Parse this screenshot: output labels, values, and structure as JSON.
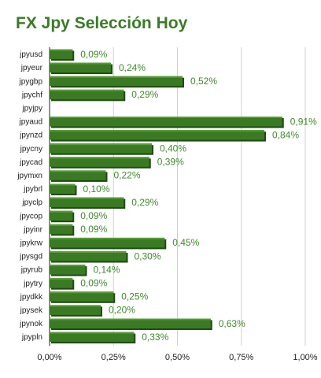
{
  "title": "FX Jpy Selección Hoy",
  "colors": {
    "title": "#3a7b27",
    "bar_fill": "#3a7a23",
    "bar_highlight": "#5a9a3a",
    "bar_shadow": "#1f4a12",
    "value_label": "#3f8a2a",
    "grid": "#d0d0d0",
    "axis": "#222222"
  },
  "chart_data": {
    "type": "bar",
    "orientation": "horizontal",
    "title": "FX Jpy Selección Hoy",
    "xlabel": "",
    "ylabel": "",
    "xlim": [
      0,
      1.0
    ],
    "grid": true,
    "legend": "none",
    "x_ticks": [
      0,
      0.25,
      0.5,
      0.75,
      1.0
    ],
    "x_tick_labels": [
      "0,00%",
      "0,25%",
      "0,50%",
      "0,75%",
      "1,00%"
    ],
    "categories": [
      "jpyusd",
      "jpyeur",
      "jpygbp",
      "jpychf",
      "jpyjpy",
      "jpyaud",
      "jpynzd",
      "jpycny",
      "jpycad",
      "jpymxn",
      "jpybrl",
      "jpyclp",
      "jpycop",
      "jpyinr",
      "jpykrw",
      "jpysgd",
      "jpyrub",
      "jpytry",
      "jpydkk",
      "jpysek",
      "jpynok",
      "jpypln"
    ],
    "values": [
      0.09,
      0.24,
      0.52,
      0.29,
      0,
      0.91,
      0.84,
      0.4,
      0.39,
      0.22,
      0.1,
      0.29,
      0.09,
      0.09,
      0.45,
      0.3,
      0.14,
      0.09,
      0.25,
      0.2,
      0.63,
      0.33
    ],
    "value_labels": [
      "0,09%",
      "0,24%",
      "0,52%",
      "0,29%",
      "",
      "0,91%",
      "0,84%",
      "0,40%",
      "0,39%",
      "0,22%",
      "0,10%",
      "0,29%",
      "0,09%",
      "0,09%",
      "0,45%",
      "0,30%",
      "0,14%",
      "0,09%",
      "0,25%",
      "0,20%",
      "0,63%",
      "0,33%"
    ]
  }
}
